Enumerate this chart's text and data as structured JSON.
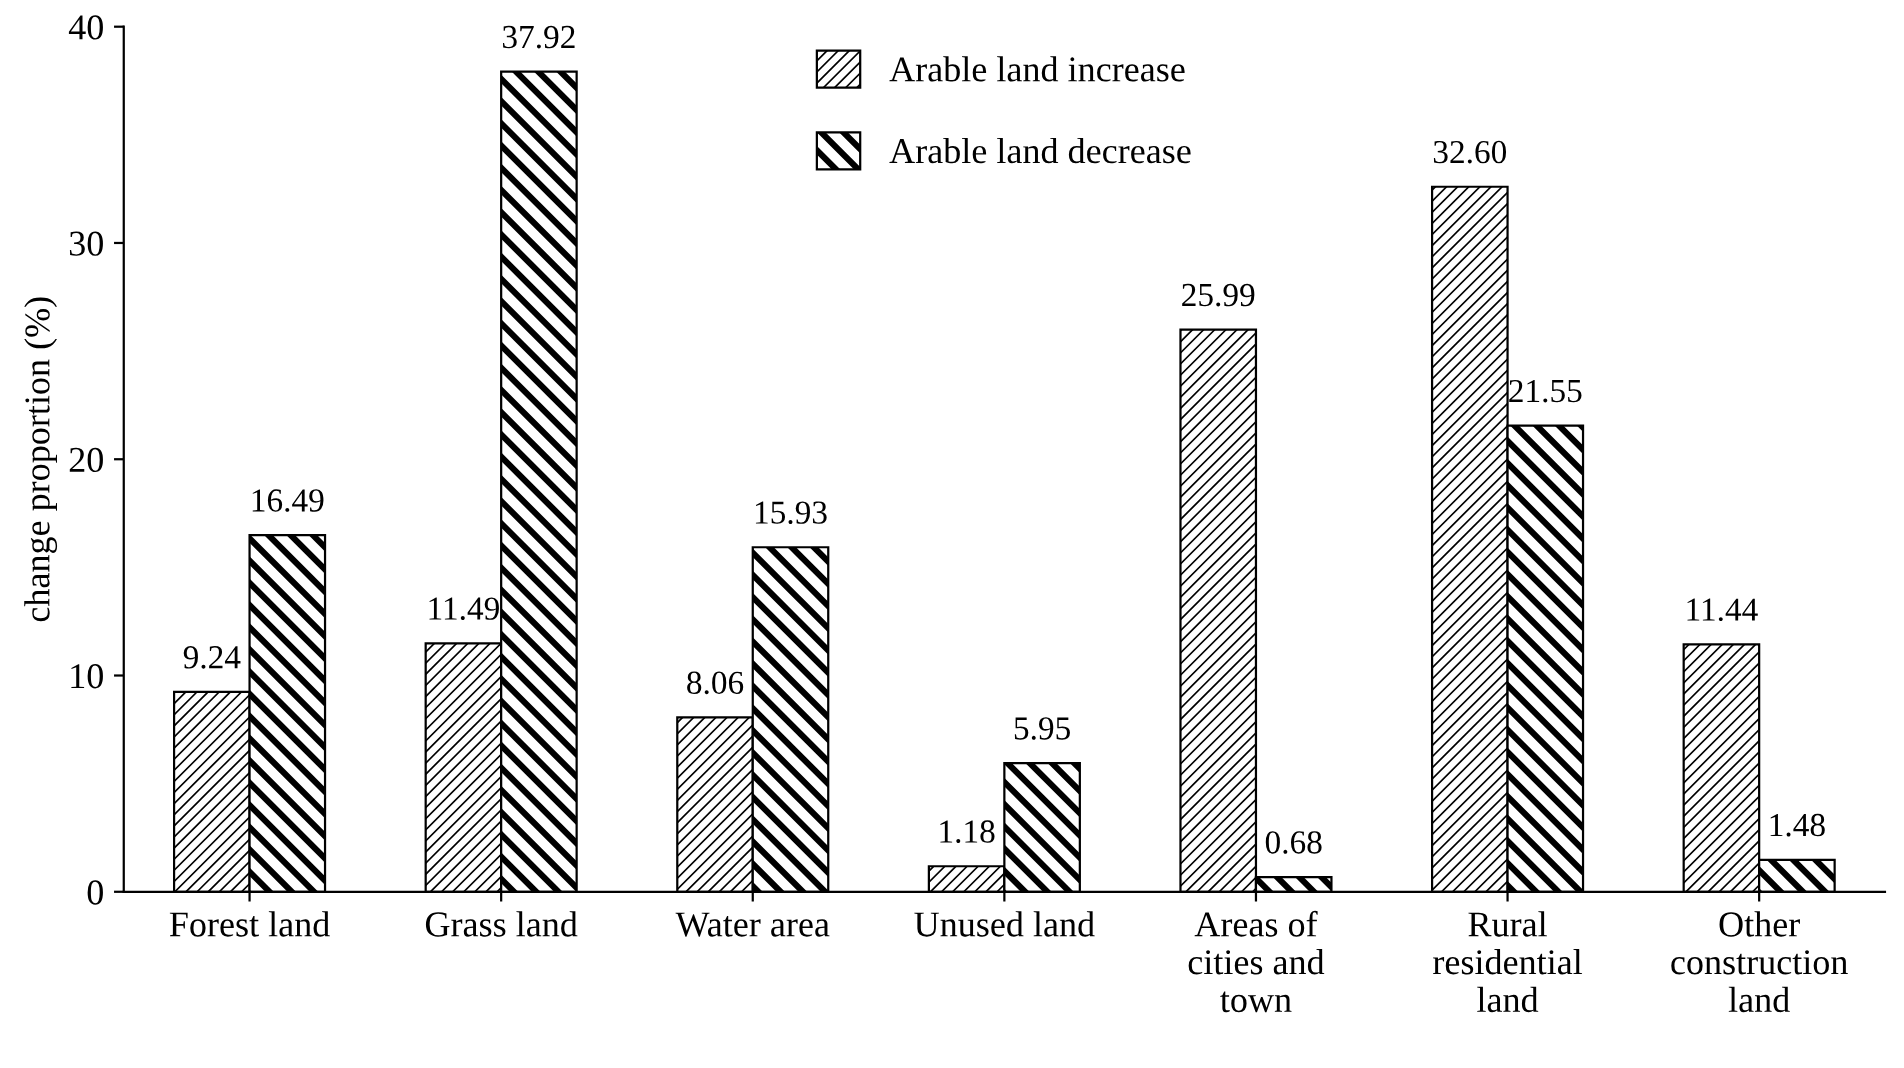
{
  "chart_data": {
    "type": "bar",
    "categories": [
      "Forest land",
      "Grass land",
      "Water area",
      "Unused land",
      "Areas of\ncities and\ntown",
      "Rural\nresidential\nland",
      "Other\nconstruction\nland"
    ],
    "series": [
      {
        "name": "Arable land increase",
        "color": "#000000",
        "values": [
          9.24,
          11.49,
          8.06,
          1.18,
          25.99,
          32.6,
          11.44
        ],
        "value_labels": [
          "9.24",
          "11.49",
          "8.06",
          "1.18",
          "25.99",
          "32.60",
          "11.44"
        ]
      },
      {
        "name": "Arable land decrease",
        "color": "#000000",
        "values": [
          16.49,
          37.92,
          15.93,
          5.95,
          0.68,
          21.55,
          1.48
        ],
        "value_labels": [
          "16.49",
          "37.92",
          "15.93",
          "5.95",
          "0.68",
          "21.55",
          "1.48"
        ]
      }
    ],
    "ylabel": "change proportion (%)",
    "ylim": [
      0,
      40
    ],
    "yticks": [
      0,
      10,
      20,
      30,
      40
    ],
    "grid": false,
    "legend": "top"
  }
}
